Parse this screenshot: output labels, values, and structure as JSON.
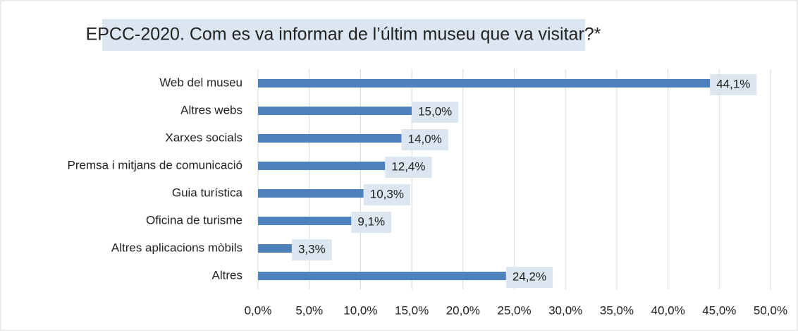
{
  "chart_data": {
    "type": "bar",
    "orientation": "horizontal",
    "title": "EPCC-2020. Com es va informar de l’últim museu que va visitar?*",
    "categories": [
      "Web del museu",
      "Altres webs",
      "Xarxes socials",
      "Premsa i mitjans de comunicació",
      "Guia turística",
      "Oficina de turisme",
      "Altres aplicacions mòbils",
      "Altres"
    ],
    "values": [
      44.1,
      15.0,
      14.0,
      12.4,
      10.3,
      9.1,
      3.3,
      24.2
    ],
    "value_labels": [
      "44,1%",
      "15,0%",
      "14,0%",
      "12,4%",
      "10,3%",
      "9,1%",
      "3,3%",
      "24,2%"
    ],
    "color": "#4f81bd",
    "xlim": [
      0,
      50
    ],
    "xticks": [
      {
        "value": 0,
        "label": "0,0%"
      },
      {
        "value": 5,
        "label": "5,0%"
      },
      {
        "value": 10,
        "label": "10,0%"
      },
      {
        "value": 15,
        "label": "15,0%"
      },
      {
        "value": 20,
        "label": "20,0%"
      },
      {
        "value": 25,
        "label": "25,0%"
      },
      {
        "value": 30,
        "label": "30,0%"
      },
      {
        "value": 35,
        "label": "35,0%"
      },
      {
        "value": 40,
        "label": "40,0%"
      },
      {
        "value": 45,
        "label": "45,0%"
      },
      {
        "value": 50,
        "label": "50,0%"
      }
    ],
    "grid": true
  }
}
